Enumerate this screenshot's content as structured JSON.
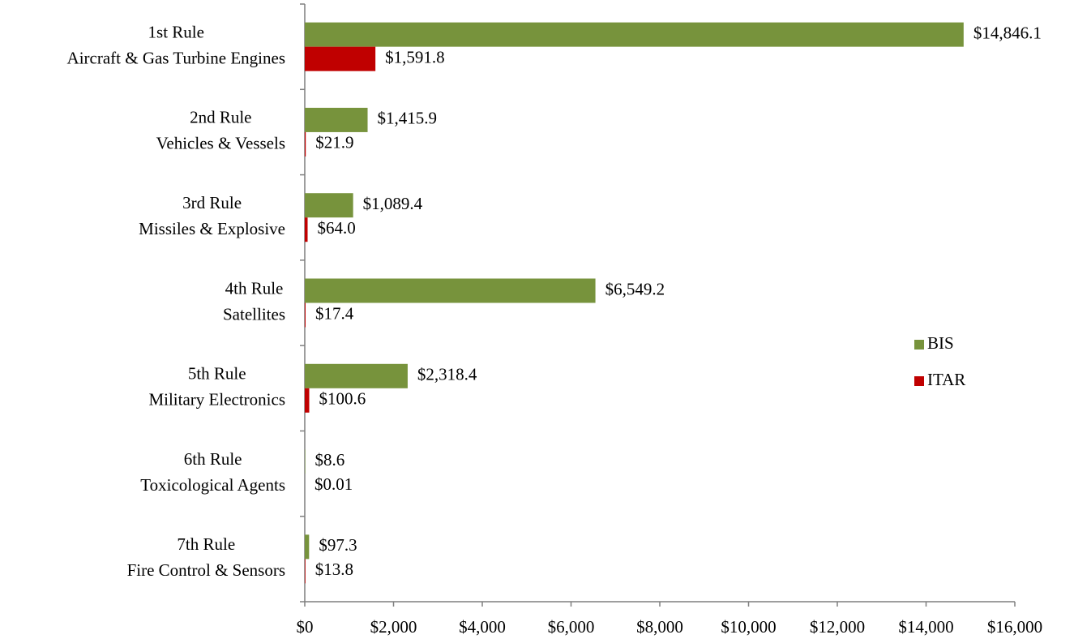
{
  "chart_data": {
    "type": "hbar",
    "categories": [
      [
        "1st Rule",
        "Aircraft & Gas Turbine Engines"
      ],
      [
        "2nd Rule",
        "Vehicles & Vessels"
      ],
      [
        "3rd Rule",
        "Missiles & Explosive"
      ],
      [
        "4th Rule",
        "Satellites"
      ],
      [
        "5th Rule",
        "Military Electronics"
      ],
      [
        "6th Rule",
        "Toxicological Agents"
      ],
      [
        "7th Rule",
        "Fire Control & Sensors"
      ]
    ],
    "series": [
      {
        "name": "BIS",
        "color": "#77933c",
        "values": [
          14846.1,
          1415.9,
          1089.4,
          6549.2,
          2318.4,
          8.6,
          97.3
        ],
        "value_labels": [
          "$14,846.1",
          "$1,415.9",
          "$1,089.4",
          "$6,549.2",
          "$2,318.4",
          "$8.6",
          "$97.3"
        ]
      },
      {
        "name": "ITAR",
        "color": "#c00000",
        "values": [
          1591.8,
          21.9,
          64.0,
          17.4,
          100.6,
          0.01,
          13.8
        ],
        "value_labels": [
          "$1,591.8",
          "$21.9",
          "$64.0",
          "$17.4",
          "$100.6",
          "$0.01",
          "$13.8"
        ]
      }
    ],
    "xlim": [
      0,
      16000
    ],
    "xticks": [
      {
        "value": 0,
        "label": "$0"
      },
      {
        "value": 2000,
        "label": "$2,000"
      },
      {
        "value": 4000,
        "label": "$4,000"
      },
      {
        "value": 6000,
        "label": "$6,000"
      },
      {
        "value": 8000,
        "label": "$8,000"
      },
      {
        "value": 10000,
        "label": "$10,000"
      },
      {
        "value": 12000,
        "label": "$12,000"
      },
      {
        "value": 14000,
        "label": "$14,000"
      },
      {
        "value": 16000,
        "label": "$16,000"
      }
    ],
    "legend": "right"
  }
}
